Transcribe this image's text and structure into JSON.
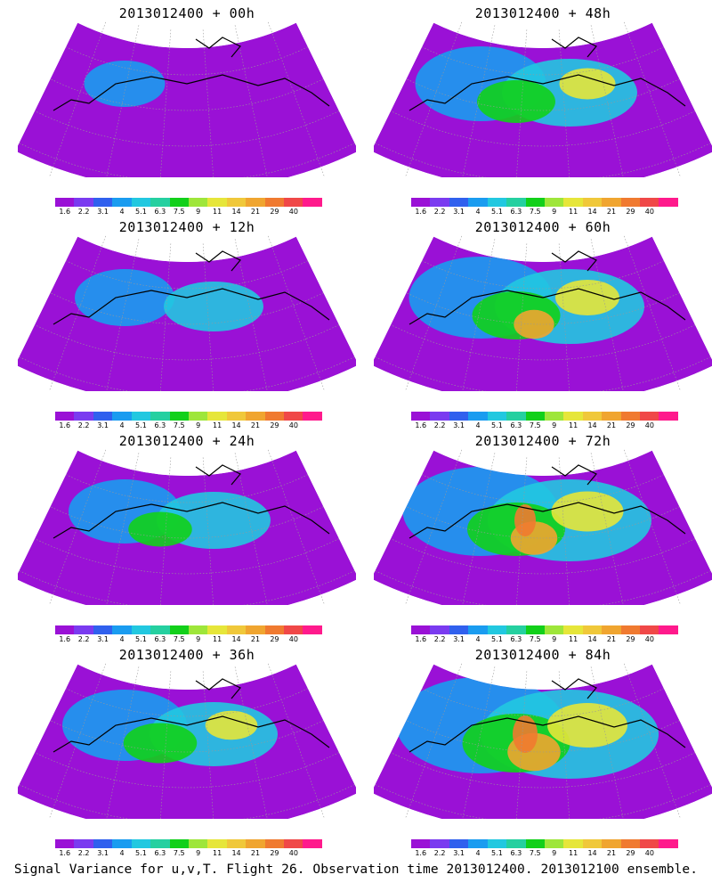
{
  "legend": {
    "colors": [
      "#9a11d6",
      "#7a3bf0",
      "#3060ee",
      "#1a9cf0",
      "#22c8e0",
      "#25d0a0",
      "#12d01a",
      "#9ee63a",
      "#e6e63a",
      "#f0c83a",
      "#f0a530",
      "#f07a30",
      "#f04848",
      "#ff1a8c"
    ],
    "labels": [
      "1.6",
      "2.2",
      "3.1",
      "4",
      "5.1",
      "6.3",
      "7.5",
      "9",
      "11",
      "14",
      "21",
      "29",
      "40"
    ]
  },
  "panels": [
    {
      "title": "2013012400  +  00h",
      "intensity": 0.15
    },
    {
      "title": "2013012400  +  48h",
      "intensity": 0.55
    },
    {
      "title": "2013012400  +  12h",
      "intensity": 0.3
    },
    {
      "title": "2013012400  +  60h",
      "intensity": 0.65
    },
    {
      "title": "2013012400  +  24h",
      "intensity": 0.4
    },
    {
      "title": "2013012400  +  72h",
      "intensity": 0.75
    },
    {
      "title": "2013012400  +  36h",
      "intensity": 0.5
    },
    {
      "title": "2013012400  +  84h",
      "intensity": 0.85
    }
  ],
  "footer": "Signal Variance for u,v,T. Flight 26. Observation time 2013012400. 2013012100 ensemble.",
  "map_colors": {
    "low": "#9a11d6",
    "blue": "#1a9cf0",
    "cyan": "#22c8e0",
    "green": "#12d01a",
    "yellow": "#e6e63a",
    "orange": "#f0a530",
    "red": "#f07a30",
    "coast": "#000000",
    "grid": "#999999"
  }
}
